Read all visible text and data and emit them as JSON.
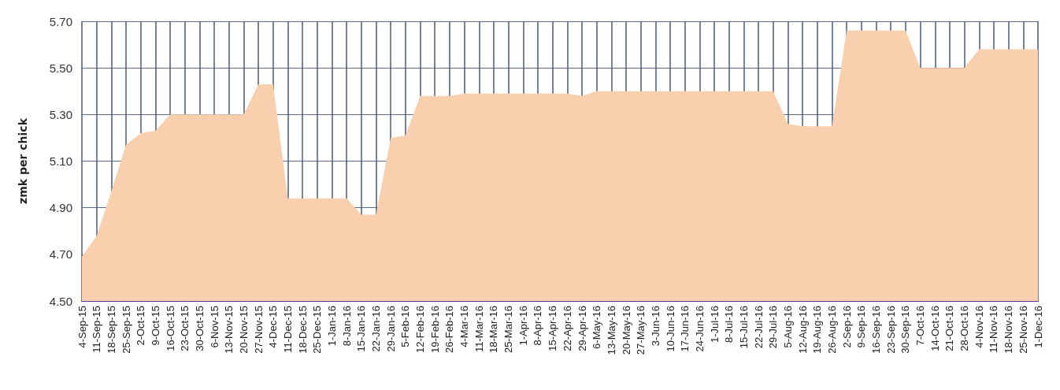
{
  "chart_data": {
    "type": "area",
    "ylabel": "zmk per chick",
    "categories": [
      "4-Sep-15",
      "11-Sep-15",
      "18-Sep-15",
      "25-Sep-15",
      "2-Oct-15",
      "9-Oct-15",
      "16-Oct-15",
      "23-Oct-15",
      "30-Oct-15",
      "6-Nov-15",
      "13-Nov-15",
      "20-Nov-15",
      "27-Nov-15",
      "4-Dec-15",
      "11-Dec-15",
      "18-Dec-15",
      "25-Dec-15",
      "1-Jan-16",
      "8-Jan-16",
      "15-Jan-16",
      "22-Jan-16",
      "29-Jan-16",
      "5-Feb-16",
      "12-Feb-16",
      "19-Feb-16",
      "26-Feb-16",
      "4-Mar-16",
      "11-Mar-16",
      "18-Mar-16",
      "25-Mar-16",
      "1-Apr-16",
      "8-Apr-16",
      "15-Apr-16",
      "22-Apr-16",
      "29-Apr-16",
      "6-May-16",
      "13-May-16",
      "20-May-16",
      "27-May-16",
      "3-Jun-16",
      "10-Jun-16",
      "17-Jun-16",
      "24-Jun-16",
      "1-Jul-16",
      "8-Jul-16",
      "15-Jul-16",
      "22-Jul-16",
      "29-Jul-16",
      "5-Aug-16",
      "12-Aug-16",
      "19-Aug-16",
      "26-Aug-16",
      "2-Sep-16",
      "9-Sep-16",
      "16-Sep-16",
      "23-Sep-16",
      "30-Sep-16",
      "7-Oct-16",
      "14-Oct-16",
      "21-Oct-16",
      "28-Oct-16",
      "4-Nov-16",
      "11-Nov-16",
      "18-Nov-16",
      "25-Nov-16",
      "1-Dec-16"
    ],
    "values": [
      4.69,
      4.78,
      4.97,
      5.17,
      5.22,
      5.23,
      5.3,
      5.3,
      5.3,
      5.3,
      5.3,
      5.3,
      5.43,
      5.43,
      4.94,
      4.94,
      4.94,
      4.94,
      4.94,
      4.87,
      4.87,
      5.2,
      5.21,
      5.38,
      5.38,
      5.38,
      5.39,
      5.39,
      5.39,
      5.39,
      5.39,
      5.39,
      5.39,
      5.39,
      5.38,
      5.4,
      5.4,
      5.4,
      5.4,
      5.4,
      5.4,
      5.4,
      5.4,
      5.4,
      5.4,
      5.4,
      5.4,
      5.4,
      5.26,
      5.25,
      5.25,
      5.25,
      5.66,
      5.66,
      5.66,
      5.66,
      5.66,
      5.5,
      5.5,
      5.5,
      5.5,
      5.58,
      5.58,
      5.58,
      5.58,
      5.58
    ],
    "color": "#f9d0ae",
    "ylim": [
      4.5,
      5.7
    ],
    "yticks": [
      {
        "value": 4.5,
        "label": "4.50"
      },
      {
        "value": 4.7,
        "label": "4.70"
      },
      {
        "value": 4.9,
        "label": "4.90"
      },
      {
        "value": 5.1,
        "label": "5.10"
      },
      {
        "value": 5.3,
        "label": "5.30"
      },
      {
        "value": 5.5,
        "label": "5.50"
      },
      {
        "value": 5.7,
        "label": "5.70"
      }
    ],
    "grid": true
  }
}
